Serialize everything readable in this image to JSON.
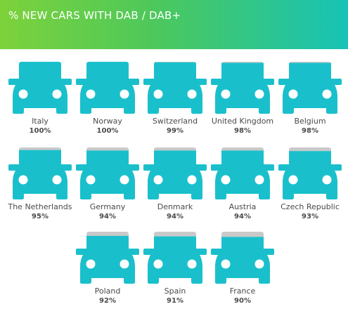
{
  "header": {
    "title": "% NEW CARS WITH DAB / DAB+",
    "gradient_start": "#7dd23a",
    "gradient_end": "#17c3b6"
  },
  "colors": {
    "car_body": "#19c0cc",
    "car_unfilled": "#c9c9c9",
    "car_wheels": "#ffffff",
    "label_text": "#4a4a4a"
  },
  "chart_data": {
    "type": "pictogram",
    "title": "% NEW CARS WITH DAB / DAB+",
    "unit": "%",
    "categories": [
      "Italy",
      "Norway",
      "Switzerland",
      "United Kingdom",
      "Belgium",
      "The Netherlands",
      "Germany",
      "Denmark",
      "Austria",
      "Czech Republic",
      "Poland",
      "Spain",
      "France"
    ],
    "values": [
      100,
      100,
      99,
      98,
      98,
      95,
      94,
      94,
      94,
      93,
      92,
      91,
      90
    ],
    "labels": [
      "100%",
      "100%",
      "99%",
      "98%",
      "98%",
      "95%",
      "94%",
      "94%",
      "94%",
      "93%",
      "92%",
      "91%",
      "90%"
    ]
  }
}
